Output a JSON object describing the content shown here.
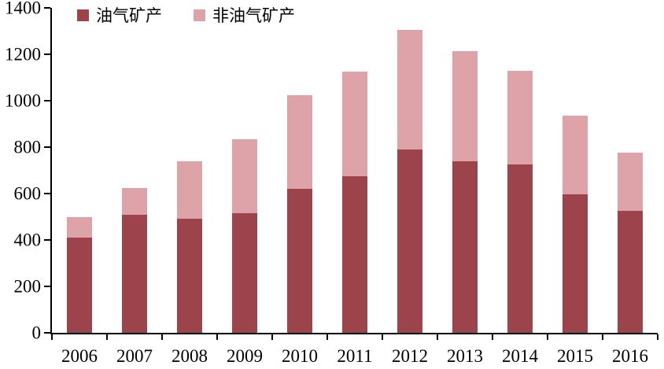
{
  "chart_data": {
    "type": "bar",
    "stacked": true,
    "title": "",
    "xlabel": "",
    "ylabel": "",
    "categories": [
      "2006",
      "2007",
      "2008",
      "2009",
      "2010",
      "2011",
      "2012",
      "2013",
      "2014",
      "2015",
      "2016"
    ],
    "series": [
      {
        "name": "油气矿产",
        "color": "#9c434b",
        "values": [
          410,
          510,
          490,
          515,
          620,
          675,
          790,
          740,
          725,
          595,
          525
        ]
      },
      {
        "name": "非油气矿产",
        "color": "#dda3a8",
        "values": [
          90,
          115,
          250,
          320,
          405,
          450,
          515,
          475,
          405,
          340,
          250
        ]
      }
    ],
    "ylim": [
      0,
      1400
    ],
    "yticks": [
      0,
      200,
      400,
      600,
      800,
      1000,
      1200,
      1400
    ],
    "grid": false,
    "legend_position": "top-left-inside"
  },
  "colors": {
    "axis": "#000000",
    "background": "#ffffff",
    "oil_gas": "#9c434b",
    "non_oil_gas": "#dda3a8"
  }
}
